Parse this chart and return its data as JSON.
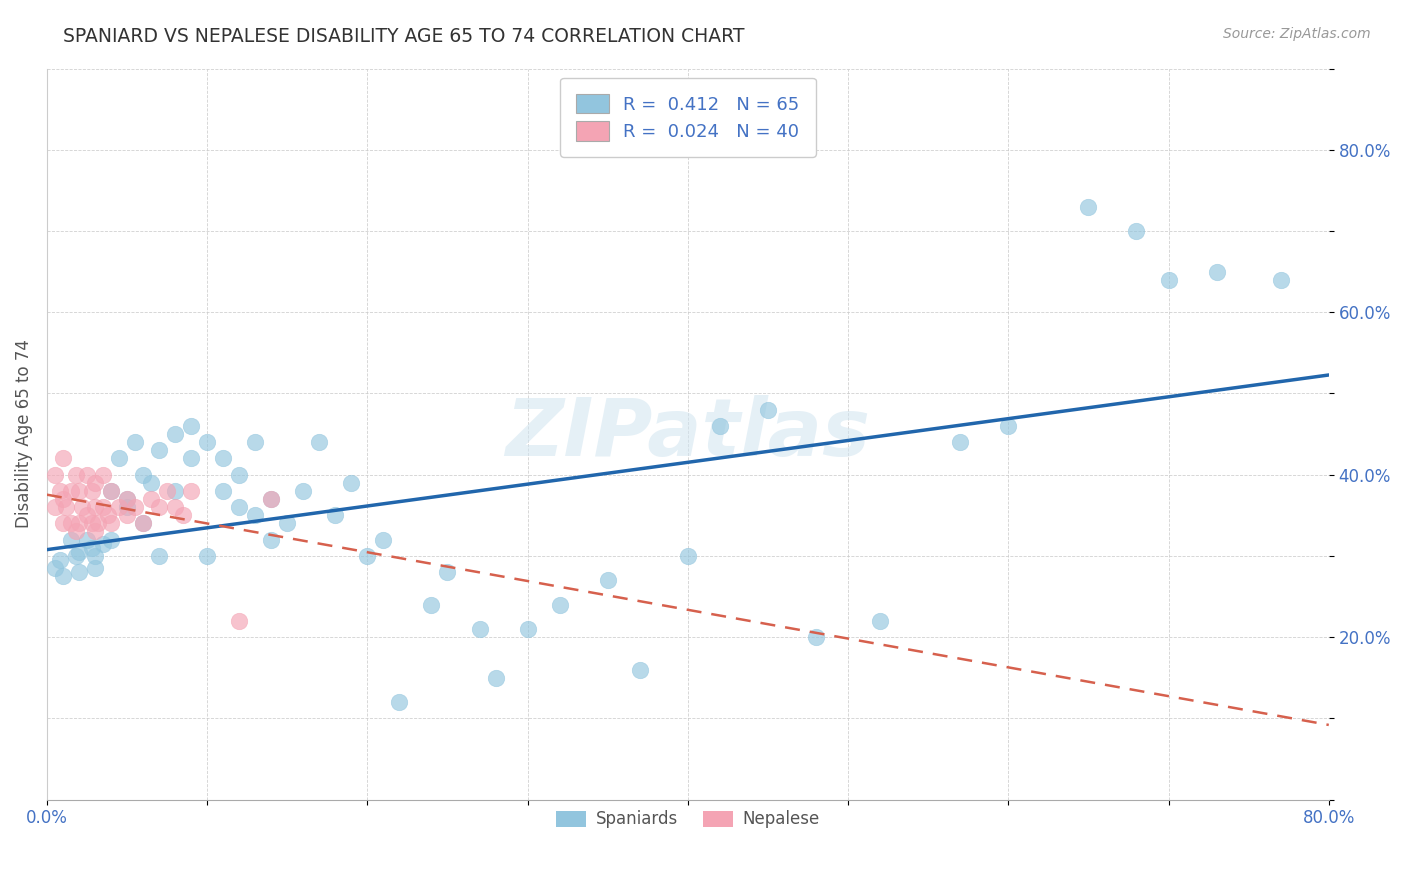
{
  "title": "SPANIARD VS NEPALESE DISABILITY AGE 65 TO 74 CORRELATION CHART",
  "source_text": "Source: ZipAtlas.com",
  "ylabel": "Disability Age 65 to 74",
  "xlim": [
    0.0,
    0.8
  ],
  "ylim": [
    0.0,
    0.9
  ],
  "watermark": "ZIPatlas",
  "color_blue": "#92c5de",
  "color_pink": "#f4a4b4",
  "line_color_blue": "#2166ac",
  "line_color_pink": "#d6604d",
  "spaniards_x": [
    0.005,
    0.008,
    0.01,
    0.015,
    0.018,
    0.02,
    0.02,
    0.025,
    0.028,
    0.03,
    0.03,
    0.035,
    0.04,
    0.04,
    0.045,
    0.05,
    0.05,
    0.055,
    0.06,
    0.06,
    0.065,
    0.07,
    0.07,
    0.08,
    0.08,
    0.09,
    0.09,
    0.1,
    0.1,
    0.11,
    0.11,
    0.12,
    0.12,
    0.13,
    0.13,
    0.14,
    0.14,
    0.15,
    0.16,
    0.17,
    0.18,
    0.19,
    0.2,
    0.21,
    0.22,
    0.24,
    0.25,
    0.27,
    0.28,
    0.3,
    0.32,
    0.35,
    0.37,
    0.4,
    0.42,
    0.45,
    0.48,
    0.52,
    0.57,
    0.6,
    0.65,
    0.68,
    0.7,
    0.73,
    0.77
  ],
  "spaniards_y": [
    0.285,
    0.295,
    0.275,
    0.32,
    0.3,
    0.305,
    0.28,
    0.32,
    0.31,
    0.285,
    0.3,
    0.315,
    0.32,
    0.38,
    0.42,
    0.36,
    0.37,
    0.44,
    0.34,
    0.4,
    0.39,
    0.43,
    0.3,
    0.38,
    0.45,
    0.42,
    0.46,
    0.3,
    0.44,
    0.38,
    0.42,
    0.36,
    0.4,
    0.35,
    0.44,
    0.37,
    0.32,
    0.34,
    0.38,
    0.44,
    0.35,
    0.39,
    0.3,
    0.32,
    0.12,
    0.24,
    0.28,
    0.21,
    0.15,
    0.21,
    0.24,
    0.27,
    0.16,
    0.3,
    0.46,
    0.48,
    0.2,
    0.22,
    0.44,
    0.46,
    0.73,
    0.7,
    0.64,
    0.65,
    0.64
  ],
  "nepalese_x": [
    0.005,
    0.005,
    0.008,
    0.01,
    0.01,
    0.01,
    0.012,
    0.015,
    0.015,
    0.018,
    0.018,
    0.02,
    0.02,
    0.022,
    0.025,
    0.025,
    0.028,
    0.028,
    0.03,
    0.03,
    0.03,
    0.032,
    0.035,
    0.035,
    0.038,
    0.04,
    0.04,
    0.045,
    0.05,
    0.05,
    0.055,
    0.06,
    0.065,
    0.07,
    0.075,
    0.08,
    0.085,
    0.09,
    0.12,
    0.14
  ],
  "nepalese_y": [
    0.36,
    0.4,
    0.38,
    0.34,
    0.37,
    0.42,
    0.36,
    0.34,
    0.38,
    0.33,
    0.4,
    0.34,
    0.38,
    0.36,
    0.35,
    0.4,
    0.34,
    0.38,
    0.33,
    0.36,
    0.39,
    0.34,
    0.36,
    0.4,
    0.35,
    0.34,
    0.38,
    0.36,
    0.35,
    0.37,
    0.36,
    0.34,
    0.37,
    0.36,
    0.38,
    0.36,
    0.35,
    0.38,
    0.22,
    0.37
  ]
}
